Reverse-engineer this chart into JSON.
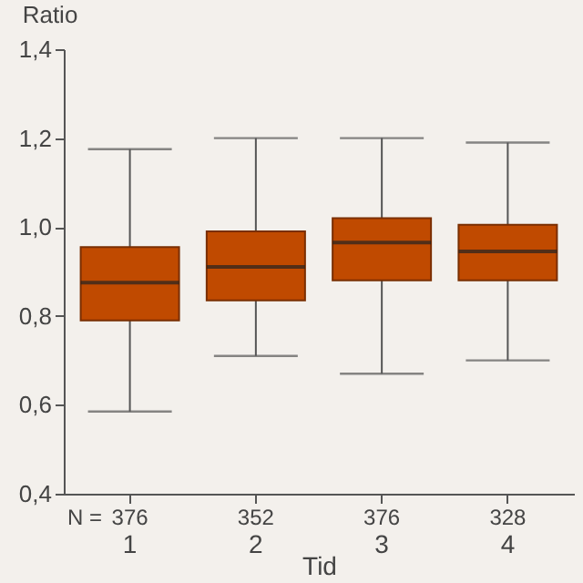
{
  "chart_data": {
    "type": "box",
    "ylabel": "Ratio",
    "xlabel": "Tid",
    "categories": [
      "1",
      "2",
      "3",
      "4"
    ],
    "boxes": [
      {
        "low": 0.585,
        "q1": 0.79,
        "median": 0.875,
        "q3": 0.955,
        "high": 1.175
      },
      {
        "low": 0.71,
        "q1": 0.835,
        "median": 0.91,
        "q3": 0.99,
        "high": 1.2
      },
      {
        "low": 0.67,
        "q1": 0.88,
        "median": 0.965,
        "q3": 1.02,
        "high": 1.2
      },
      {
        "low": 0.7,
        "q1": 0.88,
        "median": 0.945,
        "q3": 1.005,
        "high": 1.19
      }
    ],
    "color": "#c04a00",
    "ylim": [
      0.4,
      1.4
    ],
    "yticks": [
      {
        "value": 0.4,
        "label": "0,4"
      },
      {
        "value": 0.6,
        "label": "0,6"
      },
      {
        "value": 0.8,
        "label": "0,8"
      },
      {
        "value": 1.0,
        "label": "1,0"
      },
      {
        "value": 1.2,
        "label": "1,2"
      },
      {
        "value": 1.4,
        "label": "1,4"
      }
    ],
    "grid": false,
    "annotations": [
      "N =",
      "376",
      "352",
      "376",
      "328"
    ]
  }
}
